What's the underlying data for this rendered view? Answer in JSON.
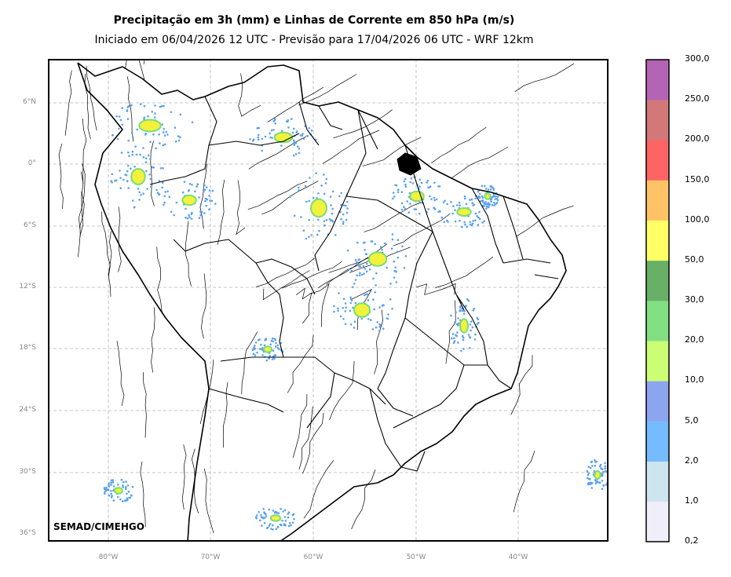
{
  "titles": {
    "main": "Precipitação em 3h (mm) e Linhas de Corrente em 850 hPa (m/s)",
    "sub": "Iniciado em 06/04/2026 12 UTC - Previsão para 17/04/2026 06 UTC - WRF 12km"
  },
  "map": {
    "lat_labels": [
      "6°N",
      "0°",
      "6°S",
      "12°S",
      "18°S",
      "24°S",
      "30°S",
      "36°S"
    ],
    "lon_labels": [
      "80°W",
      "70°W",
      "60°W",
      "50°W",
      "40°W"
    ],
    "gridlines": true,
    "credit": "SEMAD/CIMEHGO"
  },
  "colorbar": {
    "labels": [
      "0,2",
      "1,0",
      "2,0",
      "5,0",
      "10,0",
      "20,0",
      "30,0",
      "50,0",
      "100,0",
      "150,0",
      "200,0",
      "250,0",
      "300,0"
    ],
    "colors": [
      "#f0eef9",
      "#cde5ee",
      "#74bbff",
      "#8ba5ef",
      "#cbfe73",
      "#82df82",
      "#68b068",
      "#ffff66",
      "#ffc366",
      "#ff6464",
      "#d27878",
      "#b464b4"
    ]
  },
  "colors": {
    "precip_light": "#5aa0f0",
    "precip_green": "#7adc7a",
    "precip_yellow": "#f2f23c",
    "border": "#000000",
    "gridline": "#b4b4b4"
  }
}
